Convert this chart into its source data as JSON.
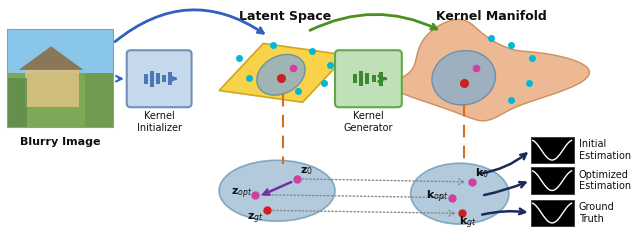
{
  "fig_width": 6.4,
  "fig_height": 2.39,
  "dpi": 100,
  "bg_color": "#ffffff",
  "labels": {
    "blurry_image": "Blurry Image",
    "kernel_initializer": "Kernel\nInitializer",
    "latent_space": "Latent Space",
    "kernel_generator": "Kernel\nGenerator",
    "kernel_manifold": "Kernel Manifold",
    "initial_estimation": "Initial\nEstimation",
    "optimized_estimation": "Optimized\nEstimation",
    "ground_truth": "Ground\nTruth",
    "z0": "$\\mathbf{z}_0$",
    "zopt": "$\\mathbf{z}_{opt}$",
    "zgt": "$\\mathbf{z}_{gt}$",
    "k0": "$\\mathbf{k}_0$",
    "kopt": "$\\mathbf{k}_{opt}$",
    "kgt": "$\\mathbf{k}_{gt}$"
  },
  "colors": {
    "arc_blue": "#3060c0",
    "arc_green": "#4a9020",
    "dashed_orange": "#d07020",
    "dot_cyan": "#00b8d8",
    "dot_magenta": "#d040a0",
    "dot_red": "#cc2020",
    "arrow_dark": "#1a2a5a",
    "text_dark": "#101010",
    "purple_arrow": "#7030a0"
  }
}
